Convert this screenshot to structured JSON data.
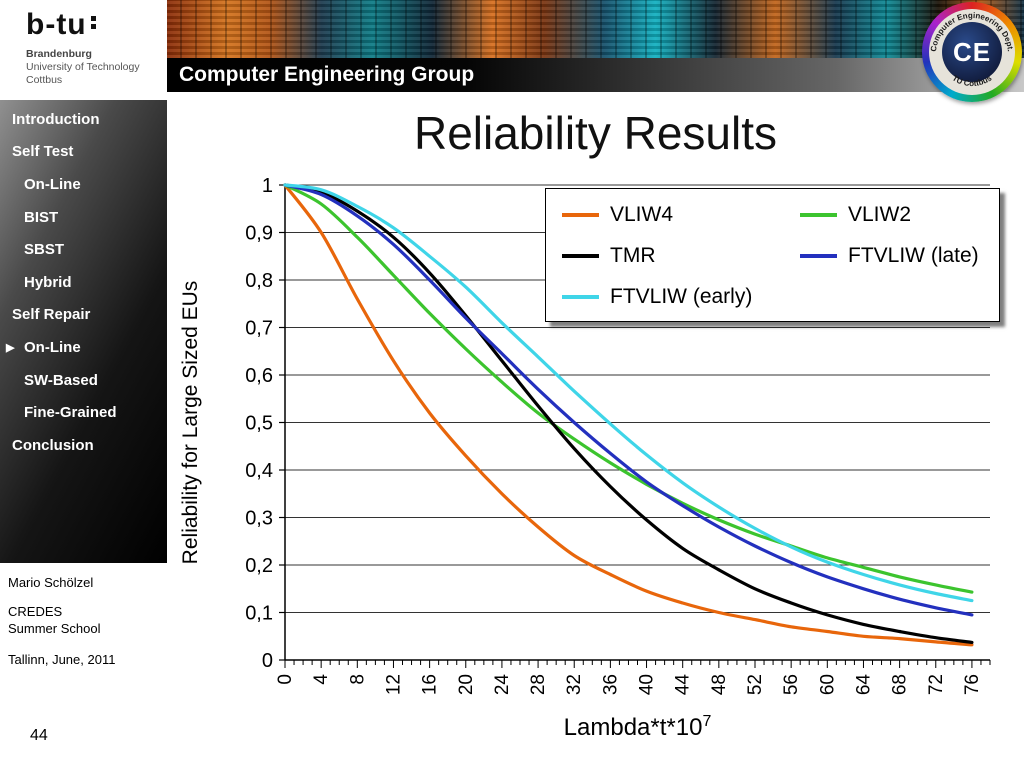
{
  "header": {
    "logo": {
      "brand": "b-tu",
      "org_lines": [
        "Brandenburg",
        "University of Technology",
        "Cottbus"
      ]
    },
    "group_bar": "Computer Engineering Group",
    "seal": {
      "center": "CE",
      "ring_top": "Computer Engineering Dept.",
      "ring_bottom": "TU Cottbus"
    }
  },
  "sidebar": {
    "items": [
      {
        "label": "Introduction",
        "level": 0,
        "active": false
      },
      {
        "label": "Self Test",
        "level": 0,
        "active": false
      },
      {
        "label": "On-Line",
        "level": 1,
        "active": false
      },
      {
        "label": "BIST",
        "level": 1,
        "active": false
      },
      {
        "label": "SBST",
        "level": 1,
        "active": false
      },
      {
        "label": "Hybrid",
        "level": 1,
        "active": false
      },
      {
        "label": "Self Repair",
        "level": 0,
        "active": false
      },
      {
        "label": "On-Line",
        "level": 1,
        "active": true
      },
      {
        "label": "SW-Based",
        "level": 1,
        "active": false
      },
      {
        "label": "Fine-Grained",
        "level": 1,
        "active": false
      },
      {
        "label": "Conclusion",
        "level": 0,
        "active": false
      }
    ],
    "footer_lines": [
      "Mario Schölzel",
      "CREDES",
      "Summer School",
      "Tallinn, June, 2011"
    ],
    "page_number": "44"
  },
  "main": {
    "title": "Reliability Results"
  },
  "chart_data": {
    "type": "line",
    "x": [
      0,
      4,
      8,
      12,
      16,
      20,
      24,
      28,
      32,
      36,
      40,
      44,
      48,
      52,
      56,
      60,
      64,
      68,
      72,
      76
    ],
    "series": [
      {
        "name": "VLIW4",
        "color": "#E8660B",
        "values": [
          1.0,
          0.9,
          0.76,
          0.63,
          0.52,
          0.43,
          0.35,
          0.28,
          0.22,
          0.18,
          0.145,
          0.12,
          0.1,
          0.085,
          0.07,
          0.06,
          0.05,
          0.045,
          0.038,
          0.032
        ]
      },
      {
        "name": "VLIW2",
        "color": "#3CC42E",
        "values": [
          1.0,
          0.96,
          0.89,
          0.81,
          0.73,
          0.655,
          0.585,
          0.52,
          0.465,
          0.415,
          0.37,
          0.33,
          0.295,
          0.265,
          0.24,
          0.215,
          0.195,
          0.175,
          0.158,
          0.143
        ]
      },
      {
        "name": "TMR",
        "color": "#000000",
        "values": [
          1.0,
          0.985,
          0.945,
          0.89,
          0.815,
          0.725,
          0.63,
          0.535,
          0.445,
          0.365,
          0.295,
          0.235,
          0.19,
          0.15,
          0.12,
          0.095,
          0.075,
          0.06,
          0.047,
          0.037
        ]
      },
      {
        "name": "FTVLIW (late)",
        "color": "#2330BE",
        "values": [
          1.0,
          0.98,
          0.935,
          0.875,
          0.8,
          0.72,
          0.645,
          0.57,
          0.5,
          0.435,
          0.375,
          0.325,
          0.28,
          0.24,
          0.205,
          0.175,
          0.15,
          0.128,
          0.11,
          0.095
        ]
      },
      {
        "name": "FTVLIW (early)",
        "color": "#3FD5E8",
        "values": [
          1.0,
          0.99,
          0.955,
          0.91,
          0.85,
          0.785,
          0.71,
          0.638,
          0.566,
          0.497,
          0.432,
          0.373,
          0.322,
          0.277,
          0.238,
          0.206,
          0.18,
          0.158,
          0.14,
          0.125
        ]
      }
    ],
    "xlabel_base": "Lambda*t*10",
    "xlabel_sup": "7",
    "ylabel": "Reliability for Large Sized EUs",
    "xlim": [
      0,
      78
    ],
    "ylim": [
      0,
      1
    ],
    "y_tick_labels": [
      "0",
      "0,1",
      "0,2",
      "0,3",
      "0,4",
      "0,5",
      "0,6",
      "0,7",
      "0,8",
      "0,9",
      "1"
    ],
    "x_tick_labels": [
      "0",
      "4",
      "8",
      "12",
      "16",
      "20",
      "24",
      "28",
      "32",
      "36",
      "40",
      "44",
      "48",
      "52",
      "56",
      "60",
      "64",
      "68",
      "72",
      "76"
    ],
    "grid": "horizontal",
    "legend": {
      "position": "top-right-inside",
      "order": [
        "VLIW4",
        "VLIW2",
        "TMR",
        "FTVLIW (late)",
        "FTVLIW (early)"
      ]
    }
  }
}
